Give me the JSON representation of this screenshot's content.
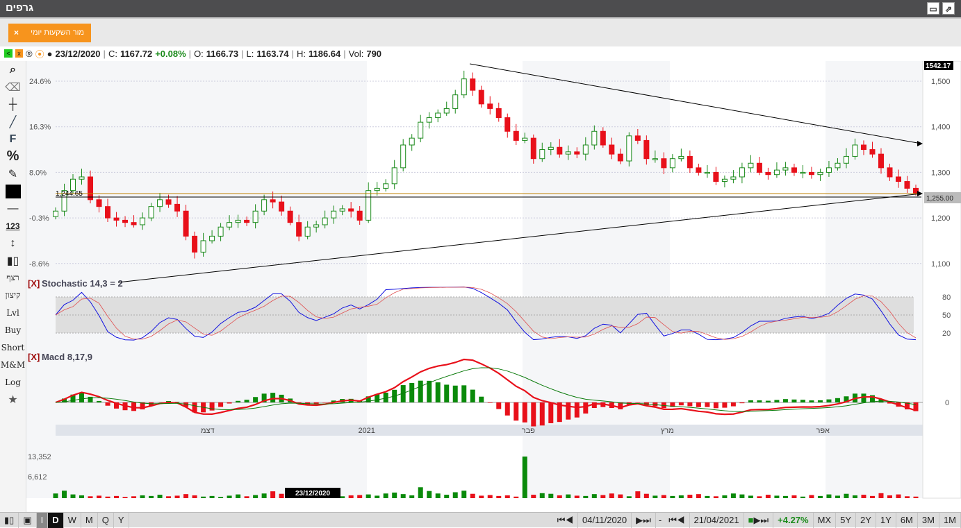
{
  "window": {
    "title": "גרפים",
    "restore_icon": "▭",
    "popout_icon": "⇗"
  },
  "tab": {
    "label": "מור השקעות יומי",
    "close": "×"
  },
  "info": {
    "date": "23/12/2020",
    "close_label": "C:",
    "close": "1167.72",
    "change": "+0.08%",
    "open_label": "O:",
    "open": "1166.73",
    "low_label": "L:",
    "low": "1163.74",
    "high_label": "H:",
    "high": "1186.64",
    "vol_label": "Vol:",
    "vol": "790"
  },
  "toolbar": {
    "items": [
      "רצף",
      "קיצון",
      "Lvl",
      "Buy",
      "Short",
      "M&M",
      "Log"
    ]
  },
  "colors": {
    "up": "#1a8a1a",
    "down": "#e8101a",
    "accent": "#f7941d",
    "stoch_k": "#1010e0",
    "stoch_d": "#e05050"
  },
  "chart_data": {
    "type": "candlestick",
    "price_axis": [
      "1,500",
      "1,400",
      "1,300",
      "1,200",
      "1,100"
    ],
    "price_ticks": [
      1500,
      1400,
      1300,
      1200,
      1100
    ],
    "pct_axis": [
      "24.6%",
      "16.3%",
      "8.0%",
      "-0.3%",
      "-8.6%"
    ],
    "max_label": "1542.17",
    "last_label": "1,255.00",
    "level_label": "1,244.65",
    "level": 1244.65,
    "closes": [
      1215,
      1260,
      1285,
      1290,
      1240,
      1225,
      1200,
      1195,
      1190,
      1185,
      1200,
      1225,
      1240,
      1230,
      1215,
      1160,
      1125,
      1150,
      1160,
      1180,
      1190,
      1195,
      1190,
      1215,
      1240,
      1235,
      1215,
      1190,
      1160,
      1180,
      1185,
      1200,
      1215,
      1220,
      1215,
      1195,
      1260,
      1265,
      1275,
      1310,
      1360,
      1375,
      1410,
      1420,
      1430,
      1440,
      1470,
      1505,
      1480,
      1450,
      1440,
      1420,
      1390,
      1370,
      1375,
      1330,
      1350,
      1355,
      1340,
      1345,
      1340,
      1360,
      1390,
      1360,
      1340,
      1325,
      1380,
      1370,
      1330,
      1330,
      1310,
      1330,
      1335,
      1310,
      1300,
      1300,
      1280,
      1285,
      1290,
      1310,
      1320,
      1300,
      1295,
      1305,
      1310,
      1300,
      1300,
      1295,
      1300,
      1310,
      1320,
      1335,
      1360,
      1350,
      1340,
      1310,
      1290,
      1280,
      1265,
      1255
    ],
    "volumes": [
      1500,
      2400,
      1200,
      900,
      600,
      800,
      500,
      700,
      400,
      600,
      900,
      700,
      1100,
      600,
      800,
      1300,
      900,
      500,
      700,
      400,
      800,
      1200,
      600,
      1000,
      1500,
      2200,
      1400,
      700,
      900,
      600,
      1100,
      800,
      1300,
      600,
      900,
      1000,
      1200,
      800,
      1500,
      1800,
      1300,
      900,
      3500,
      2300,
      1500,
      1100,
      1900,
      2400,
      1400,
      800,
      1000,
      700,
      900,
      500,
      13352,
      1100,
      1600,
      1400,
      900,
      1200,
      800,
      700,
      1300,
      1000,
      1500,
      1200,
      600,
      2200,
      1400,
      800,
      1000,
      700,
      900,
      1100,
      1300,
      700,
      600,
      900,
      1500,
      1200,
      800,
      600,
      1100,
      800,
      700,
      900,
      500,
      1000,
      700,
      1200,
      800,
      1400,
      900,
      1100,
      700,
      1600,
      900,
      1200,
      600,
      500
    ],
    "stochastic": {
      "label": "Stochastic 14,3 = 2",
      "close_tag": "[X]",
      "levels": [
        "80",
        "50",
        "20"
      ]
    },
    "macd": {
      "label": "Macd 8,17,9",
      "close_tag": "[X]",
      "zero": "0"
    },
    "volume_axis": [
      "13,352",
      "6,612"
    ],
    "time_labels": [
      "דצמ",
      "2021",
      "פבר",
      "מרץ",
      "אפר"
    ],
    "time_label_idx": [
      17.5,
      35.8,
      54.4,
      70.4,
      88.3
    ],
    "cursor_date": "23/12/2020"
  },
  "bottom": {
    "periods": [
      "I",
      "D",
      "W",
      "M",
      "Q",
      "Y"
    ],
    "from": "04/11/2020",
    "to": "21/04/2021",
    "change": "+4.27%",
    "ranges": [
      "MX",
      "5Y",
      "2Y",
      "1Y",
      "6M",
      "3M",
      "1M"
    ],
    "dash": "-"
  }
}
